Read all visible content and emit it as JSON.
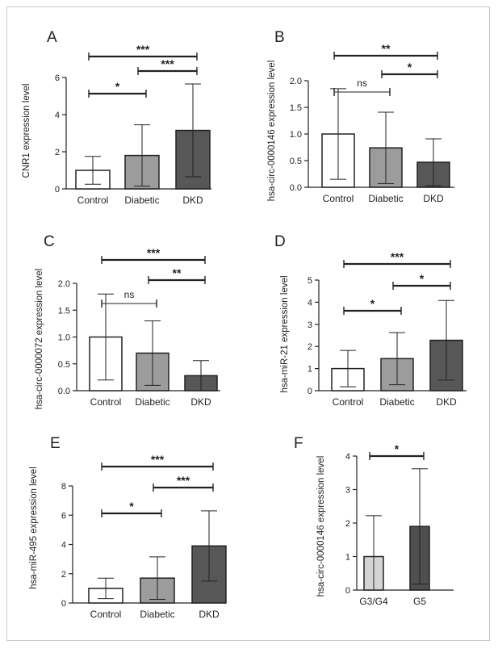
{
  "colors": {
    "Control": "#ffffff",
    "Diabetic": "#9c9c9c",
    "DKD": "#575757",
    "G3/G4": "#d4d4d4",
    "G5": "#4f4f4f",
    "ink": "#222222"
  },
  "chart_data": [
    {
      "panel": "A",
      "type": "bar",
      "ylabel": "CNR1 expression level",
      "categories": [
        "Control",
        "Diabetic",
        "DKD"
      ],
      "values": [
        1.0,
        1.8,
        3.15
      ],
      "error": [
        0.75,
        1.65,
        2.5
      ],
      "ylim": [
        0,
        6
      ],
      "yticks": [
        0,
        2,
        4,
        6
      ],
      "grid": false,
      "significance": [
        {
          "from": 0,
          "to": 1,
          "label": "*"
        },
        {
          "from": 1,
          "to": 2,
          "label": "***"
        },
        {
          "from": 0,
          "to": 2,
          "label": "***"
        }
      ]
    },
    {
      "panel": "B",
      "type": "bar",
      "ylabel": "hsa-circ-0000146 expression level",
      "categories": [
        "Control",
        "Diabetic",
        "DKD"
      ],
      "values": [
        1.0,
        0.74,
        0.47
      ],
      "error": [
        0.85,
        0.67,
        0.44
      ],
      "ylim": [
        0,
        2.0
      ],
      "yticks": [
        "0.0",
        "0.5",
        "1.0",
        "1.5",
        "2.0"
      ],
      "grid": false,
      "significance": [
        {
          "from": 0,
          "to": 1,
          "label": "ns"
        },
        {
          "from": 1,
          "to": 2,
          "label": "*"
        },
        {
          "from": 0,
          "to": 2,
          "label": "**"
        }
      ]
    },
    {
      "panel": "C",
      "type": "bar",
      "ylabel": "hsa-circ-0000072 expression level",
      "categories": [
        "Control",
        "Diabetic",
        "DKD"
      ],
      "values": [
        1.0,
        0.7,
        0.28
      ],
      "error": [
        0.8,
        0.6,
        0.28
      ],
      "ylim": [
        0,
        2.0
      ],
      "yticks": [
        "0.0",
        "0.5",
        "1.0",
        "1.5",
        "2.0"
      ],
      "grid": false,
      "significance": [
        {
          "from": 0,
          "to": 1,
          "label": "ns"
        },
        {
          "from": 1,
          "to": 2,
          "label": "**"
        },
        {
          "from": 0,
          "to": 2,
          "label": "***"
        }
      ]
    },
    {
      "panel": "D",
      "type": "bar",
      "ylabel": "hsa-miR-21 expression level",
      "categories": [
        "Control",
        "Diabetic",
        "DKD"
      ],
      "values": [
        1.0,
        1.45,
        2.28
      ],
      "error": [
        0.82,
        1.18,
        1.8
      ],
      "ylim": [
        0,
        5
      ],
      "yticks": [
        0,
        1,
        2,
        3,
        4,
        5
      ],
      "grid": false,
      "significance": [
        {
          "from": 0,
          "to": 1,
          "label": "*"
        },
        {
          "from": 1,
          "to": 2,
          "label": "*"
        },
        {
          "from": 0,
          "to": 2,
          "label": "***"
        }
      ]
    },
    {
      "panel": "E",
      "type": "bar",
      "ylabel": "hsa-miR-495 expression level",
      "categories": [
        "Control",
        "Diabetic",
        "DKD"
      ],
      "values": [
        1.0,
        1.7,
        3.9
      ],
      "error": [
        0.7,
        1.45,
        2.4
      ],
      "ylim": [
        0,
        8
      ],
      "yticks": [
        0,
        2,
        4,
        6,
        8
      ],
      "grid": false,
      "significance": [
        {
          "from": 0,
          "to": 1,
          "label": "*"
        },
        {
          "from": 1,
          "to": 2,
          "label": "***"
        },
        {
          "from": 0,
          "to": 2,
          "label": "***"
        }
      ]
    },
    {
      "panel": "F",
      "type": "bar",
      "ylabel": "hsa-circ-0000146  expression level",
      "categories": [
        "G3/G4",
        "G5"
      ],
      "values": [
        1.0,
        1.9
      ],
      "error": [
        1.22,
        1.72
      ],
      "ylim": [
        0,
        4
      ],
      "yticks": [
        0,
        1,
        2,
        3,
        4
      ],
      "grid": false,
      "significance": [
        {
          "from": 0,
          "to": 1,
          "label": "*"
        }
      ]
    }
  ]
}
